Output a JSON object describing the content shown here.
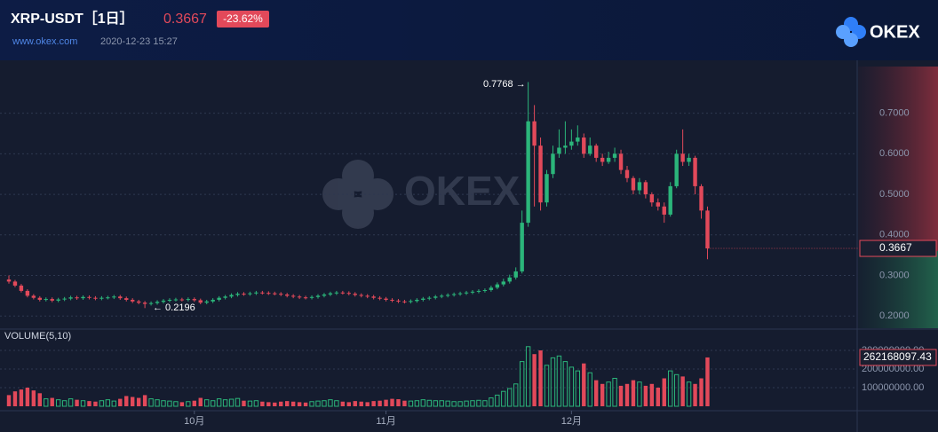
{
  "header": {
    "title": "XRP-USDT［1日］",
    "change_label": "-23.62%",
    "site": "www.okex.com",
    "timestamp": "2020-12-23 15:27",
    "logo": "OKEX",
    "watermark": "OKEX"
  },
  "chart_data": {
    "type": "candlestick",
    "categories": [
      null,
      null,
      null,
      null,
      null,
      null,
      null,
      null,
      null,
      null,
      null,
      null,
      null,
      null,
      null,
      null,
      null,
      null,
      null,
      null,
      null,
      null,
      null,
      null,
      null,
      null,
      null,
      null,
      null,
      null,
      "10月",
      null,
      null,
      null,
      null,
      null,
      null,
      null,
      null,
      null,
      null,
      null,
      null,
      null,
      null,
      null,
      null,
      null,
      null,
      null,
      null,
      null,
      null,
      null,
      null,
      null,
      null,
      null,
      null,
      null,
      null,
      "11月",
      null,
      null,
      null,
      null,
      null,
      null,
      null,
      null,
      null,
      null,
      null,
      null,
      null,
      null,
      null,
      null,
      null,
      null,
      null,
      null,
      null,
      null,
      null,
      null,
      null,
      null,
      null,
      null,
      null,
      "12月",
      null,
      null,
      null,
      null,
      null,
      null,
      null,
      null,
      null,
      null,
      null,
      null,
      null,
      null,
      null,
      null,
      null,
      null,
      null,
      null,
      null,
      null
    ],
    "open": [
      0.29,
      0.285,
      0.275,
      0.262,
      0.25,
      0.245,
      0.24,
      0.242,
      0.238,
      0.241,
      0.243,
      0.246,
      0.244,
      0.247,
      0.245,
      0.243,
      0.245,
      0.246,
      0.248,
      0.244,
      0.24,
      0.236,
      0.233,
      0.23,
      0.232,
      0.235,
      0.238,
      0.24,
      0.241,
      0.24,
      0.242,
      0.239,
      0.233,
      0.236,
      0.24,
      0.245,
      0.248,
      0.252,
      0.255,
      0.254,
      0.256,
      0.258,
      0.257,
      0.256,
      0.255,
      0.253,
      0.25,
      0.248,
      0.246,
      0.245,
      0.247,
      0.25,
      0.253,
      0.256,
      0.258,
      0.257,
      0.255,
      0.252,
      0.25,
      0.248,
      0.245,
      0.243,
      0.24,
      0.238,
      0.236,
      0.235,
      0.237,
      0.24,
      0.243,
      0.245,
      0.248,
      0.25,
      0.252,
      0.254,
      0.256,
      0.258,
      0.26,
      0.262,
      0.264,
      0.27,
      0.278,
      0.285,
      0.295,
      0.31,
      0.43,
      0.68,
      0.62,
      0.48,
      0.55,
      0.6,
      0.615,
      0.62,
      0.63,
      0.64,
      0.6,
      0.62,
      0.59,
      0.58,
      0.59,
      0.6,
      0.56,
      0.54,
      0.51,
      0.53,
      0.5,
      0.48,
      0.47,
      0.45,
      0.52,
      0.6,
      0.58,
      0.59,
      0.52,
      0.46
    ],
    "high": [
      0.3,
      0.289,
      0.279,
      0.266,
      0.254,
      0.249,
      0.246,
      0.246,
      0.245,
      0.247,
      0.25,
      0.25,
      0.251,
      0.251,
      0.249,
      0.249,
      0.25,
      0.252,
      0.252,
      0.248,
      0.244,
      0.24,
      0.237,
      0.236,
      0.239,
      0.242,
      0.244,
      0.245,
      0.245,
      0.246,
      0.246,
      0.243,
      0.24,
      0.244,
      0.249,
      0.252,
      0.256,
      0.259,
      0.259,
      0.26,
      0.262,
      0.262,
      0.261,
      0.26,
      0.259,
      0.257,
      0.254,
      0.252,
      0.25,
      0.251,
      0.254,
      0.257,
      0.26,
      0.262,
      0.262,
      0.261,
      0.259,
      0.256,
      0.254,
      0.252,
      0.249,
      0.247,
      0.244,
      0.242,
      0.24,
      0.241,
      0.244,
      0.247,
      0.249,
      0.252,
      0.254,
      0.256,
      0.258,
      0.26,
      0.262,
      0.264,
      0.266,
      0.268,
      0.275,
      0.283,
      0.292,
      0.302,
      0.32,
      0.46,
      0.7768,
      0.72,
      0.64,
      0.56,
      0.62,
      0.66,
      0.68,
      0.66,
      0.67,
      0.65,
      0.64,
      0.625,
      0.6,
      0.605,
      0.615,
      0.61,
      0.57,
      0.545,
      0.54,
      0.535,
      0.505,
      0.49,
      0.48,
      0.53,
      0.61,
      0.66,
      0.6,
      0.595,
      0.525,
      0.47
    ],
    "low": [
      0.28,
      0.271,
      0.258,
      0.246,
      0.241,
      0.236,
      0.236,
      0.234,
      0.234,
      0.237,
      0.239,
      0.24,
      0.24,
      0.241,
      0.239,
      0.239,
      0.241,
      0.242,
      0.24,
      0.236,
      0.232,
      0.229,
      0.2196,
      0.226,
      0.228,
      0.231,
      0.234,
      0.236,
      0.236,
      0.236,
      0.235,
      0.229,
      0.229,
      0.232,
      0.236,
      0.241,
      0.244,
      0.248,
      0.25,
      0.25,
      0.252,
      0.253,
      0.252,
      0.251,
      0.249,
      0.246,
      0.244,
      0.242,
      0.241,
      0.241,
      0.243,
      0.246,
      0.249,
      0.252,
      0.253,
      0.251,
      0.248,
      0.246,
      0.244,
      0.241,
      0.239,
      0.236,
      0.234,
      0.232,
      0.231,
      0.231,
      0.233,
      0.236,
      0.239,
      0.241,
      0.244,
      0.246,
      0.248,
      0.25,
      0.252,
      0.254,
      0.256,
      0.258,
      0.26,
      0.266,
      0.273,
      0.28,
      0.29,
      0.305,
      0.42,
      0.47,
      0.46,
      0.47,
      0.54,
      0.59,
      0.6,
      0.61,
      0.62,
      0.59,
      0.595,
      0.58,
      0.57,
      0.575,
      0.58,
      0.55,
      0.53,
      0.5,
      0.5,
      0.49,
      0.47,
      0.46,
      0.43,
      0.445,
      0.515,
      0.57,
      0.57,
      0.5,
      0.44,
      0.34
    ],
    "close": [
      0.285,
      0.275,
      0.262,
      0.25,
      0.245,
      0.24,
      0.242,
      0.238,
      0.241,
      0.243,
      0.246,
      0.244,
      0.247,
      0.245,
      0.243,
      0.245,
      0.246,
      0.248,
      0.244,
      0.24,
      0.236,
      0.233,
      0.23,
      0.232,
      0.235,
      0.238,
      0.24,
      0.241,
      0.24,
      0.242,
      0.239,
      0.233,
      0.236,
      0.24,
      0.245,
      0.248,
      0.252,
      0.255,
      0.254,
      0.256,
      0.258,
      0.257,
      0.256,
      0.255,
      0.253,
      0.25,
      0.248,
      0.246,
      0.245,
      0.247,
      0.25,
      0.253,
      0.256,
      0.258,
      0.257,
      0.255,
      0.252,
      0.25,
      0.248,
      0.245,
      0.243,
      0.24,
      0.238,
      0.236,
      0.235,
      0.237,
      0.24,
      0.243,
      0.245,
      0.248,
      0.25,
      0.252,
      0.254,
      0.256,
      0.258,
      0.26,
      0.262,
      0.264,
      0.27,
      0.278,
      0.285,
      0.295,
      0.31,
      0.43,
      0.68,
      0.62,
      0.48,
      0.55,
      0.6,
      0.615,
      0.62,
      0.63,
      0.64,
      0.6,
      0.62,
      0.59,
      0.58,
      0.59,
      0.6,
      0.56,
      0.54,
      0.51,
      0.53,
      0.5,
      0.48,
      0.47,
      0.45,
      0.52,
      0.6,
      0.58,
      0.59,
      0.52,
      0.46,
      0.3667
    ],
    "volume": [
      60000000,
      80000000,
      90000000,
      100000000,
      85000000,
      70000000,
      40000000,
      45000000,
      35000000,
      30000000,
      40000000,
      35000000,
      30000000,
      28000000,
      25000000,
      30000000,
      35000000,
      28000000,
      40000000,
      55000000,
      50000000,
      45000000,
      60000000,
      40000000,
      35000000,
      30000000,
      28000000,
      25000000,
      22000000,
      25000000,
      30000000,
      45000000,
      35000000,
      30000000,
      40000000,
      35000000,
      38000000,
      42000000,
      30000000,
      28000000,
      30000000,
      25000000,
      22000000,
      20000000,
      25000000,
      28000000,
      25000000,
      22000000,
      20000000,
      25000000,
      28000000,
      30000000,
      35000000,
      30000000,
      25000000,
      22000000,
      28000000,
      25000000,
      22000000,
      28000000,
      30000000,
      35000000,
      40000000,
      38000000,
      30000000,
      28000000,
      30000000,
      35000000,
      32000000,
      30000000,
      30000000,
      28000000,
      25000000,
      25000000,
      28000000,
      30000000,
      32000000,
      30000000,
      45000000,
      60000000,
      80000000,
      95000000,
      120000000,
      240000000,
      320000000,
      280000000,
      300000000,
      220000000,
      260000000,
      270000000,
      240000000,
      210000000,
      190000000,
      230000000,
      180000000,
      140000000,
      120000000,
      130000000,
      150000000,
      110000000,
      120000000,
      140000000,
      130000000,
      110000000,
      120000000,
      100000000,
      150000000,
      190000000,
      170000000,
      160000000,
      130000000,
      120000000,
      150000000,
      262168097.43
    ],
    "up_color": "#2bb57a",
    "down_color": "#e2495a",
    "ylim": [
      0.17,
      0.815
    ],
    "yticks": [
      {
        "value": 0.2,
        "label": "0.2000"
      },
      {
        "value": 0.3,
        "label": "0.3000"
      },
      {
        "value": 0.4,
        "label": "0.4000"
      },
      {
        "value": 0.5,
        "label": "0.5000"
      },
      {
        "value": 0.6,
        "label": "0.6000"
      },
      {
        "value": 0.7,
        "label": "0.7000"
      }
    ],
    "volume_label": "VOLUME(5,10)",
    "y2lim": [
      0,
      400000000
    ],
    "y2ticks": [
      {
        "value": 100000000,
        "label": "100000000.00"
      },
      {
        "value": 200000000,
        "label": "200000000.00"
      },
      {
        "value": 300000000,
        "label": "300000000.00"
      }
    ],
    "annotations": [
      "0.7768 →",
      "← 0.2196"
    ],
    "grid": true
  }
}
